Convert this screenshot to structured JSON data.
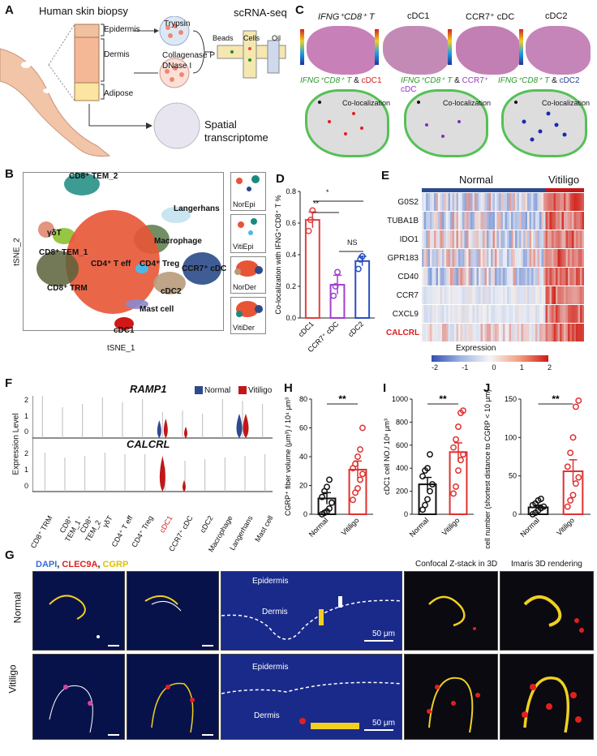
{
  "panels": {
    "A": {
      "letter": "A",
      "title": "Human skin biopsy",
      "layers": [
        "Epidermis",
        "Dermis",
        "Adipose"
      ],
      "enzyme1": "Trypsin",
      "enzyme2a": "Collagenase P",
      "enzyme2b": "DNase I",
      "method": "scRNA-seq",
      "device": [
        "Beads",
        "Cells",
        "Oil"
      ],
      "spatial1": "Spatial",
      "spatial2": "transcriptome"
    },
    "B": {
      "letter": "B",
      "xlabel": "tSNE_1",
      "ylabel": "tSNE_2",
      "clusters": [
        "CD8⁺ TEM_2",
        "Langerhans",
        "γδT",
        "CD8⁺ TEM_1",
        "Macrophage",
        "CD4⁺ T eff",
        "CD4⁺ Treg",
        "CCR7⁺ cDC",
        "CD8⁺ TRM",
        "cDC2",
        "Mast cell",
        "cDC1"
      ],
      "insets": [
        "NorEpi",
        "VitiEpi",
        "NorDer",
        "VitiDer"
      ]
    },
    "C": {
      "letter": "C",
      "top_titles": [
        "IFNG⁺CD8⁺ T",
        "cDC1",
        "CCR7⁺ cDC",
        "cDC2"
      ],
      "pair_a": "IFNG⁺CD8⁺ T",
      "amp": "&",
      "pair_b": [
        "cDC1",
        "CCR7⁺ cDC",
        "cDC2"
      ],
      "coloc": "Co-localization"
    },
    "D": {
      "letter": "D",
      "sig": [
        "*",
        "**",
        "NS"
      ]
    },
    "E": {
      "letter": "E",
      "group_normal": "Normal",
      "group_vitiligo": "Vitiligo",
      "genes": [
        "G0S2",
        "TUBA1B",
        "IDO1",
        "GPR183",
        "CD40",
        "CCR7",
        "CXCL9",
        "CALCRL"
      ],
      "legend_title": "Expression",
      "legend_ticks": [
        "-2",
        "-1",
        "0",
        "1",
        "2"
      ]
    },
    "F": {
      "letter": "F",
      "gene1": "RAMP1",
      "gene2": "CALCRL",
      "legend": [
        "Normal",
        "Vitiligo"
      ],
      "ylabel": "Expression Level",
      "ticks1": [
        "2",
        "1",
        "0"
      ],
      "ticks2": [
        "2",
        "1",
        "0"
      ],
      "categories": [
        "CD8⁺ TRM",
        "CD8⁺ TEM_1",
        "CD8⁺ TEM_2",
        "γδT",
        "CD4⁺ T eff",
        "CD4⁺ Treg",
        "cDC1",
        "CCR7⁺ cDC",
        "cDC2",
        "Macrophage",
        "Langerhans",
        "Mast cell"
      ]
    },
    "H": {
      "letter": "H",
      "sig": "**"
    },
    "I": {
      "letter": "I",
      "sig": "**"
    },
    "J": {
      "letter": "J",
      "sig": "**"
    },
    "G": {
      "letter": "G",
      "stain_dapi": "DAPI",
      "stain_clec": "CLEC9A",
      "stain_cgrp": "CGRP",
      "title_3d": "Confocal Z-stack in 3D",
      "title_imaris": "Imaris 3D rendering",
      "row_normal": "Normal",
      "row_vitiligo": "Vitiligo",
      "epidermis": "Epidermis",
      "dermis": "Dermis",
      "scale": "50 μm"
    }
  },
  "chart_data": [
    {
      "type": "bar",
      "panel": "D",
      "categories": [
        "cDC1",
        "CCR7⁺ cDC",
        "cDC2"
      ],
      "values": [
        0.62,
        0.21,
        0.36
      ],
      "errors": [
        0.05,
        0.06,
        0.03
      ],
      "points": [
        [
          0.55,
          0.62,
          0.68
        ],
        [
          0.14,
          0.2,
          0.29
        ],
        [
          0.31,
          0.37,
          0.39
        ]
      ],
      "colors": [
        "#e04040",
        "#a040d0",
        "#2a50c0"
      ],
      "ylabel": "Co-localization with IFNG⁺CD8⁺ T %",
      "ylim": [
        0,
        0.8
      ],
      "yticks": [
        "0.0",
        "0.2",
        "0.4",
        "0.6",
        "0.8"
      ]
    },
    {
      "type": "bar",
      "panel": "H",
      "categories": [
        "Normal",
        "Vitiligo"
      ],
      "values": [
        11,
        31
      ],
      "errors": [
        4,
        6
      ],
      "points": [
        [
          0,
          1,
          2,
          4,
          8,
          12,
          16,
          19,
          24
        ],
        [
          10,
          15,
          18,
          24,
          28,
          32,
          35,
          40,
          45,
          60
        ]
      ],
      "colors": [
        "#111111",
        "#e03030"
      ],
      "ylabel": "CGRP⁺ fiber volume (μm³) / 10⁴ μm³",
      "ylim": [
        0,
        80
      ],
      "yticks": [
        "0",
        "20",
        "40",
        "60",
        "80"
      ]
    },
    {
      "type": "bar",
      "panel": "I",
      "categories": [
        "Normal",
        "Vitiligo"
      ],
      "values": [
        260,
        540
      ],
      "errors": [
        60,
        80
      ],
      "points": [
        [
          40,
          80,
          130,
          200,
          260,
          330,
          380,
          400,
          520
        ],
        [
          180,
          240,
          380,
          470,
          520,
          580,
          650,
          760,
          880,
          900
        ]
      ],
      "colors": [
        "#111111",
        "#e03030"
      ],
      "ylabel": "cDC1 cell NO./ 10⁸ μm³",
      "ylim": [
        0,
        1000
      ],
      "yticks": [
        "0",
        "200",
        "400",
        "600",
        "800",
        "1000"
      ]
    },
    {
      "type": "bar",
      "panel": "J",
      "categories": [
        "Normal",
        "Vitiligo"
      ],
      "values": [
        9,
        56
      ],
      "errors": [
        3,
        15
      ],
      "points": [
        [
          0,
          2,
          5,
          8,
          10,
          12,
          14,
          18,
          20
        ],
        [
          10,
          18,
          25,
          40,
          48,
          62,
          80,
          100,
          140,
          148
        ]
      ],
      "colors": [
        "#111111",
        "#e03030"
      ],
      "ylabel": "cDC1 cell number (shortest distance to CGRP < 10 μm) NO./ 10⁸ μm³",
      "ylim": [
        0,
        150
      ],
      "yticks": [
        "0",
        "50",
        "100",
        "150"
      ]
    }
  ]
}
